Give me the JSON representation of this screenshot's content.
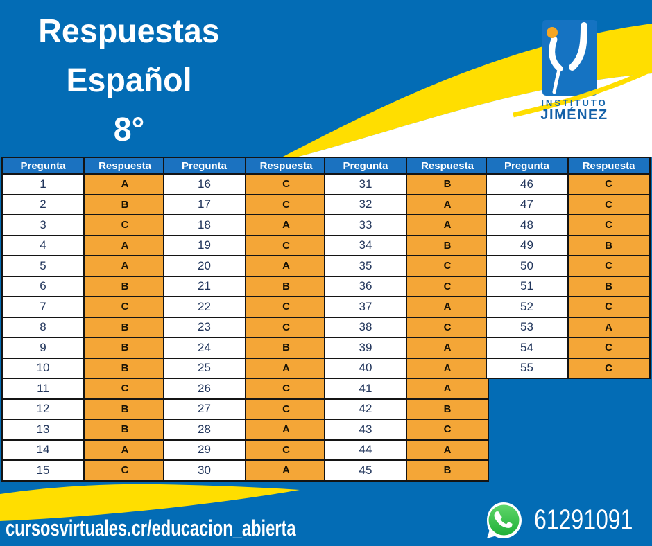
{
  "title": {
    "lines": [
      "Respuestas",
      "Español",
      "8°"
    ]
  },
  "logo": {
    "line1": "INSTITUTO",
    "line2": "JIMÉNEZ",
    "mark": "instituto-jimenez-logo"
  },
  "table": {
    "column_headers": [
      "Pregunta",
      "Respuesta"
    ],
    "groups": [
      {
        "rows": [
          {
            "q": "1",
            "a": "A"
          },
          {
            "q": "2",
            "a": "B"
          },
          {
            "q": "3",
            "a": "C"
          },
          {
            "q": "4",
            "a": "A"
          },
          {
            "q": "5",
            "a": "A"
          },
          {
            "q": "6",
            "a": "B"
          },
          {
            "q": "7",
            "a": "C"
          },
          {
            "q": "8",
            "a": "B"
          },
          {
            "q": "9",
            "a": "B"
          },
          {
            "q": "10",
            "a": "B"
          },
          {
            "q": "11",
            "a": "C"
          },
          {
            "q": "12",
            "a": "B"
          },
          {
            "q": "13",
            "a": "B"
          },
          {
            "q": "14",
            "a": "A"
          },
          {
            "q": "15",
            "a": "C"
          }
        ]
      },
      {
        "rows": [
          {
            "q": "16",
            "a": "C"
          },
          {
            "q": "17",
            "a": "C"
          },
          {
            "q": "18",
            "a": "A"
          },
          {
            "q": "19",
            "a": "C"
          },
          {
            "q": "20",
            "a": "A"
          },
          {
            "q": "21",
            "a": "B"
          },
          {
            "q": "22",
            "a": "C"
          },
          {
            "q": "23",
            "a": "C"
          },
          {
            "q": "24",
            "a": "B"
          },
          {
            "q": "25",
            "a": "A"
          },
          {
            "q": "26",
            "a": "C"
          },
          {
            "q": "27",
            "a": "C"
          },
          {
            "q": "28",
            "a": "A"
          },
          {
            "q": "29",
            "a": "C"
          },
          {
            "q": "30",
            "a": "A"
          }
        ]
      },
      {
        "rows": [
          {
            "q": "31",
            "a": "B"
          },
          {
            "q": "32",
            "a": "A"
          },
          {
            "q": "33",
            "a": "A"
          },
          {
            "q": "34",
            "a": "B"
          },
          {
            "q": "35",
            "a": "C"
          },
          {
            "q": "36",
            "a": "C"
          },
          {
            "q": "37",
            "a": "A"
          },
          {
            "q": "38",
            "a": "C"
          },
          {
            "q": "39",
            "a": "A"
          },
          {
            "q": "40",
            "a": "A"
          },
          {
            "q": "41",
            "a": "A"
          },
          {
            "q": "42",
            "a": "B"
          },
          {
            "q": "43",
            "a": "C"
          },
          {
            "q": "44",
            "a": "A"
          },
          {
            "q": "45",
            "a": "B"
          }
        ]
      },
      {
        "rows": [
          {
            "q": "46",
            "a": "C"
          },
          {
            "q": "47",
            "a": "C"
          },
          {
            "q": "48",
            "a": "C"
          },
          {
            "q": "49",
            "a": "B"
          },
          {
            "q": "50",
            "a": "C"
          },
          {
            "q": "51",
            "a": "B"
          },
          {
            "q": "52",
            "a": "C"
          },
          {
            "q": "53",
            "a": "A"
          },
          {
            "q": "54",
            "a": "C"
          },
          {
            "q": "55",
            "a": "C"
          }
        ]
      }
    ]
  },
  "footer": {
    "url": "cursosvirtuales.cr/educacion_abierta",
    "phone": "61291091",
    "icon": "whatsapp-icon"
  },
  "colors": {
    "background_blue": "#036CB5",
    "header_blue": "#1B72C0",
    "answer_orange": "#F4A637",
    "wave_yellow": "#FFDE00",
    "logo_blue": "#1573C2",
    "logo_dot_orange": "#F5A623",
    "whatsapp_green": "#25D366",
    "question_text": "#22365C",
    "text_white": "#FFFFFF"
  }
}
